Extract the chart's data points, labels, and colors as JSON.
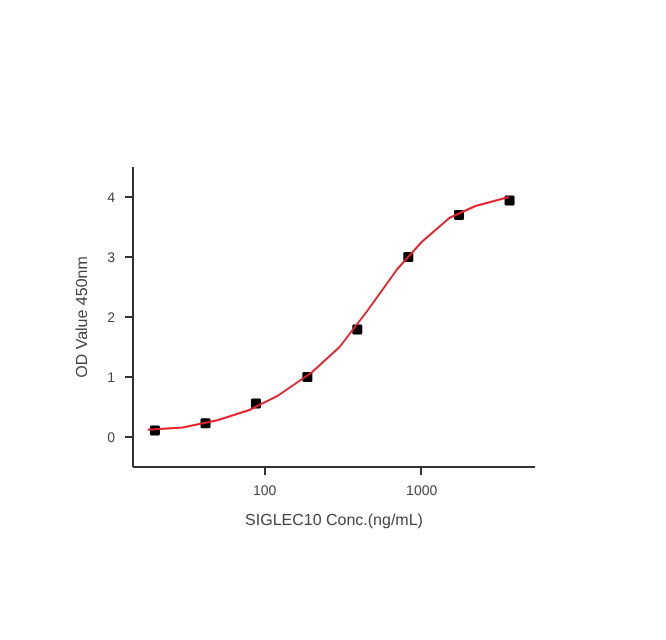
{
  "chart_data": {
    "type": "scatter",
    "xlabel": "SIGLEC10 Conc.(ng/mL)",
    "ylabel": "OD Value 450nm",
    "log": "x",
    "grid": false,
    "xlim": [
      14.5,
      5270
    ],
    "xticks": [
      100,
      1000
    ],
    "ylim": [
      -0.5,
      4.5
    ],
    "yticks": [
      0,
      1,
      2,
      3,
      4
    ],
    "series": [
      {
        "marker": "square",
        "color": "#000000",
        "x": [
          20,
          42,
          88,
          187,
          389,
          822,
          1730,
          3630
        ],
        "values": [
          0.11,
          0.23,
          0.56,
          1.0,
          1.79,
          3.0,
          3.7,
          3.94
        ]
      },
      {
        "type": "line",
        "color": "#e8202a",
        "x": [
          18,
          30,
          50,
          80,
          120,
          200,
          300,
          450,
          700,
          1000,
          1500,
          2200,
          3600
        ],
        "values": [
          0.12,
          0.16,
          0.28,
          0.45,
          0.68,
          1.08,
          1.5,
          2.1,
          2.8,
          3.25,
          3.65,
          3.85,
          4.0
        ]
      }
    ]
  }
}
